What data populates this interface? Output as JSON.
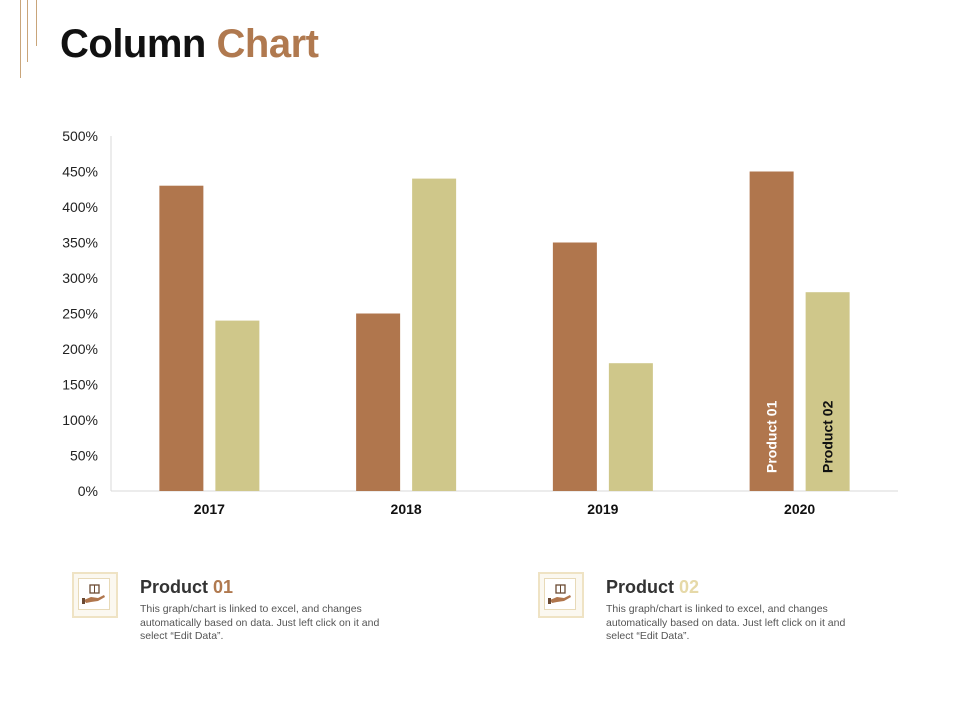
{
  "title": {
    "part1": "Column",
    "part2": "Chart"
  },
  "colors": {
    "product01": "#b0764d",
    "product02": "#cfc78a",
    "accent": "#b0794f",
    "num02": "#e6d9a8"
  },
  "chart_data": {
    "type": "bar",
    "categories": [
      "2017",
      "2018",
      "2019",
      "2020"
    ],
    "series": [
      {
        "name": "Product 01",
        "values": [
          430,
          250,
          350,
          450
        ],
        "color": "#b0764d"
      },
      {
        "name": "Product 02",
        "values": [
          240,
          440,
          180,
          280
        ],
        "color": "#cfc78a"
      }
    ],
    "ylim": [
      0,
      500
    ],
    "yticks": [
      0,
      50,
      100,
      150,
      200,
      250,
      300,
      350,
      400,
      450,
      500
    ],
    "ytick_labels": [
      "0%",
      "50%",
      "100%",
      "150%",
      "200%",
      "250%",
      "300%",
      "350%",
      "400%",
      "450%",
      "500%"
    ],
    "series_labels_on_category": "2020",
    "grid": false,
    "legend": "none"
  },
  "cards": [
    {
      "title": "Product",
      "num": "01",
      "num_color": "#b0794f",
      "icon": "hand-box-icon",
      "text": "This graph/chart is linked to excel, and changes automatically based on data. Just left click on it and select “Edit Data”."
    },
    {
      "title": "Product",
      "num": "02",
      "num_color": "#e6d9a8",
      "icon": "hand-box-icon",
      "text": "This graph/chart is linked to excel, and changes automatically based on data. Just left click on it and select “Edit Data”."
    }
  ]
}
